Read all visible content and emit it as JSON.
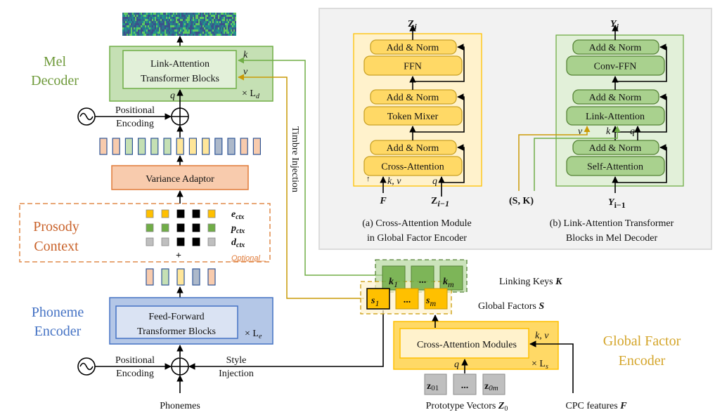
{
  "mel_decoder": {
    "label_line1": "Mel",
    "label_line2": "Decoder",
    "block_line1": "Link-Attention",
    "block_line2": "Transformer Blocks",
    "k": "k",
    "v": "v",
    "q": "q",
    "repeat": "× L",
    "repeat_sub": "d"
  },
  "positional_encoding": {
    "line1": "Positional",
    "line2": "Encoding"
  },
  "variance_adaptor": "Variance Adaptor",
  "timbre_injection": "Timbre Injection",
  "prosody_context": {
    "label_line1": "Prosody",
    "label_line2": "Context",
    "rows": [
      {
        "name": "e",
        "sub": "ctx"
      },
      {
        "name": "p",
        "sub": "ctx"
      },
      {
        "name": "d",
        "sub": "ctx"
      }
    ],
    "plus": "+",
    "optional": "Optional"
  },
  "phoneme_encoder": {
    "label_line1": "Phoneme",
    "label_line2": "Encoder",
    "block_line1": "Feed-Forward",
    "block_line2": "Transformer Blocks",
    "repeat": "× L",
    "repeat_sub": "e"
  },
  "style_injection": {
    "line1": "Style",
    "line2": "Injection"
  },
  "phonemes": "Phonemes",
  "linking_keys": {
    "items": [
      {
        "name": "k",
        "sub": "1"
      },
      {
        "name": "...",
        "sub": ""
      },
      {
        "name": "k",
        "sub": "m"
      }
    ],
    "label": "Linking Keys ",
    "symbol": "K"
  },
  "global_factors": {
    "items": [
      {
        "name": "s",
        "sub": "1"
      },
      {
        "name": "...",
        "sub": ""
      },
      {
        "name": "s",
        "sub": "m"
      }
    ],
    "label": "Global Factors ",
    "symbol": "S"
  },
  "global_factor_encoder": {
    "label_line1": "Global Factor",
    "label_line2": "Encoder",
    "block": "Cross-Attention Modules",
    "kv": "k, v",
    "q": "q",
    "repeat": "× L",
    "repeat_sub": "s"
  },
  "prototype_vectors": {
    "items": [
      {
        "name": "z",
        "sub": "01"
      },
      {
        "name": "...",
        "sub": ""
      },
      {
        "name": "z",
        "sub": "0m"
      }
    ],
    "label": "Prototype Vectors ",
    "symbol": "Z",
    "symbol_sub": "0"
  },
  "cpc_features": {
    "label": "CPC features ",
    "symbol": "F"
  },
  "panel_a": {
    "output": "Z",
    "output_sub": "i",
    "blocks": [
      "Add & Norm",
      "FFN",
      "Add & Norm",
      "Token Mixer",
      "Add & Norm",
      "Cross-Attention"
    ],
    "kv": "k, v",
    "q": "q",
    "input_f": "F",
    "input_z": "Z",
    "input_z_sub": "i−1",
    "caption_line1": "(a) Cross-Attention Module",
    "caption_line2": "in Global Factor Encoder"
  },
  "panel_b": {
    "output": "Y",
    "output_sub": "i",
    "blocks": [
      "Add & Norm",
      "Conv-FFN",
      "Add & Norm",
      "Link-Attention",
      "Add & Norm",
      "Self-Attention"
    ],
    "v": "v",
    "k": "k",
    "q": "q",
    "input_sk": "(S, K)",
    "input_y": "Y",
    "input_y_sub": "i−1",
    "caption_line1": "(b) Link-Attention Transformer",
    "caption_line2": "Blocks  in Mel Decoder"
  },
  "colors": {
    "green": "#70ad47",
    "gold": "#c99a06",
    "orange": "#c55a11",
    "blue": "#4472c4",
    "yellow": "#ffc000"
  }
}
